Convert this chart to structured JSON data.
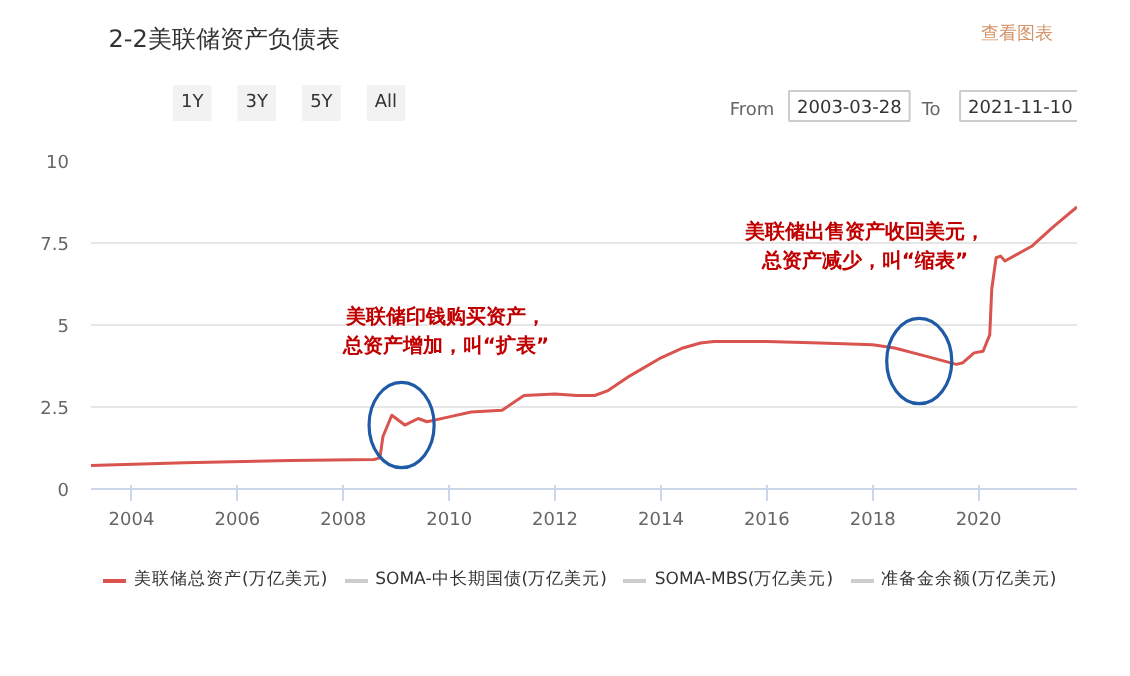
{
  "chart_data": {
    "type": "line",
    "title": "2-2美联储资产负债表",
    "x": [
      "2003-03-28",
      "2005-01-01",
      "2007-01-01",
      "2008-08-01",
      "2008-09-10",
      "2008-10-01",
      "2008-12-01",
      "2009-03-01",
      "2009-06-01",
      "2009-08-01",
      "2010-01-01",
      "2010-06-01",
      "2011-01-01",
      "2011-06-01",
      "2012-01-01",
      "2012-06-01",
      "2012-10-01",
      "2013-01-01",
      "2013-06-01",
      "2014-01-01",
      "2014-06-01",
      "2014-10-01",
      "2015-01-01",
      "2016-01-01",
      "2017-01-01",
      "2018-01-01",
      "2018-06-01",
      "2019-01-01",
      "2019-08-01",
      "2019-09-15",
      "2019-12-01",
      "2020-02-01",
      "2020-03-18",
      "2020-04-01",
      "2020-05-01",
      "2020-06-01",
      "2020-07-01",
      "2021-01-01",
      "2021-06-01",
      "2021-11-10"
    ],
    "series": [
      {
        "name": "美联储总资产(万亿美元)",
        "color": "#d9534f",
        "values": [
          0.72,
          0.8,
          0.87,
          0.9,
          0.95,
          1.6,
          2.25,
          1.95,
          2.15,
          2.05,
          2.2,
          2.35,
          2.4,
          2.85,
          2.9,
          2.85,
          2.85,
          3.0,
          3.45,
          4.0,
          4.3,
          4.45,
          4.5,
          4.5,
          4.45,
          4.4,
          4.3,
          4.05,
          3.8,
          3.85,
          4.15,
          4.2,
          4.7,
          6.1,
          7.05,
          7.1,
          6.95,
          7.4,
          8.0,
          8.6
        ]
      },
      {
        "name": "SOMA-中长期国债(万亿美元)",
        "color": "#cccccc",
        "values": [
          null,
          null,
          null,
          null,
          null,
          null,
          null,
          null,
          null,
          null,
          null,
          null,
          null,
          null,
          null,
          null,
          null,
          null,
          null,
          null,
          null,
          null,
          null,
          null,
          null,
          null,
          null,
          null,
          null,
          null,
          null,
          null,
          null,
          null,
          null,
          null,
          null,
          null,
          null,
          null
        ]
      },
      {
        "name": "SOMA-MBS(万亿美元)",
        "color": "#cccccc",
        "values": [
          null,
          null,
          null,
          null,
          null,
          null,
          null,
          null,
          null,
          null,
          null,
          null,
          null,
          null,
          null,
          null,
          null,
          null,
          null,
          null,
          null,
          null,
          null,
          null,
          null,
          null,
          null,
          null,
          null,
          null,
          null,
          null,
          null,
          null,
          null,
          null,
          null,
          null,
          null,
          null
        ]
      },
      {
        "name": "准备金余额(万亿美元)",
        "color": "#cccccc",
        "values": [
          null,
          null,
          null,
          null,
          null,
          null,
          null,
          null,
          null,
          null,
          null,
          null,
          null,
          null,
          null,
          null,
          null,
          null,
          null,
          null,
          null,
          null,
          null,
          null,
          null,
          null,
          null,
          null,
          null,
          null,
          null,
          null,
          null,
          null,
          null,
          null,
          null,
          null,
          null,
          null
        ]
      }
    ],
    "xlim": [
      "2003-03-28",
      "2021-11-10"
    ],
    "xticks": [
      {
        "value": "2004-01-01",
        "label": "2004"
      },
      {
        "value": "2006-01-01",
        "label": "2006"
      },
      {
        "value": "2008-01-01",
        "label": "2008"
      },
      {
        "value": "2010-01-01",
        "label": "2010"
      },
      {
        "value": "2012-01-01",
        "label": "2012"
      },
      {
        "value": "2014-01-01",
        "label": "2014"
      },
      {
        "value": "2016-01-01",
        "label": "2016"
      },
      {
        "value": "2018-01-01",
        "label": "2018"
      },
      {
        "value": "2020-01-01",
        "label": "2020"
      }
    ],
    "ylim": [
      0,
      10
    ],
    "yticks": [
      0,
      2.5,
      5,
      7.5,
      10
    ],
    "grid": "y",
    "legend": "bottom",
    "annotations": [
      "美联储印钱购买资产，总资产增加，叫“扩表”",
      "美联储出售资产收回美元，总资产减少，叫“缩表”",
      "查看图表",
      "1Y",
      "3Y",
      "5Y",
      "All",
      "From",
      "2003-03-28",
      "To",
      "2021-11-10"
    ]
  }
}
